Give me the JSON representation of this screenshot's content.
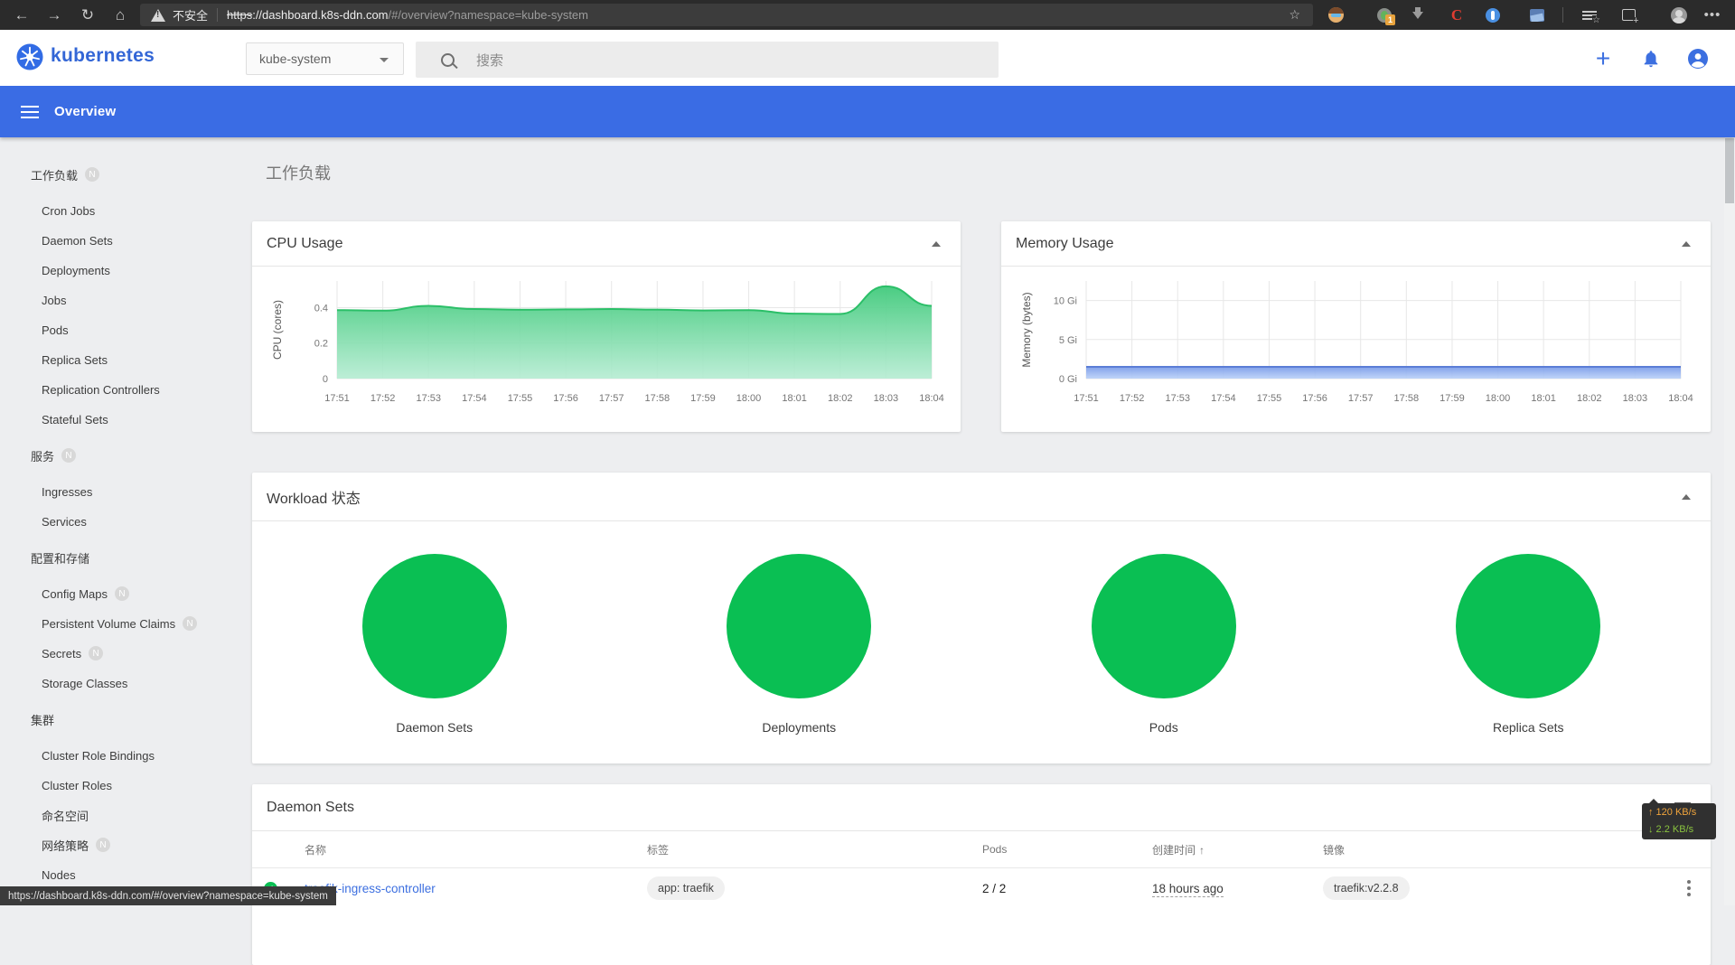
{
  "browser": {
    "security_label": "不安全",
    "url": {
      "scheme": "https",
      "domain": "://dashboard.k8s-ddn.com",
      "path": "/#/overview?namespace=kube-system"
    },
    "extension_badge": "1"
  },
  "app_header": {
    "brand": "kubernetes",
    "namespace": "kube-system",
    "search_placeholder": "搜索"
  },
  "toolbar": {
    "title": "Overview"
  },
  "sidebar": {
    "groups": [
      {
        "label": "工作负载",
        "badge": "N",
        "items": [
          {
            "label": "Cron Jobs"
          },
          {
            "label": "Daemon Sets"
          },
          {
            "label": "Deployments"
          },
          {
            "label": "Jobs"
          },
          {
            "label": "Pods"
          },
          {
            "label": "Replica Sets"
          },
          {
            "label": "Replication Controllers"
          },
          {
            "label": "Stateful Sets"
          }
        ]
      },
      {
        "label": "服务",
        "badge": "N",
        "items": [
          {
            "label": "Ingresses"
          },
          {
            "label": "Services"
          }
        ]
      },
      {
        "label": "配置和存储",
        "items": [
          {
            "label": "Config Maps",
            "badge": "N"
          },
          {
            "label": "Persistent Volume Claims",
            "badge": "N"
          },
          {
            "label": "Secrets",
            "badge": "N"
          },
          {
            "label": "Storage Classes"
          }
        ]
      },
      {
        "label": "集群",
        "items": [
          {
            "label": "Cluster Role Bindings"
          },
          {
            "label": "Cluster Roles"
          },
          {
            "label": "命名空间"
          },
          {
            "label": "网络策略",
            "badge": "N"
          },
          {
            "label": "Nodes"
          }
        ]
      }
    ]
  },
  "page": {
    "title": "工作负载"
  },
  "chart_data": [
    {
      "type": "area",
      "title": "CPU Usage",
      "ylabel": "CPU (cores)",
      "x": [
        "17:51",
        "17:52",
        "17:53",
        "17:54",
        "17:55",
        "17:56",
        "17:57",
        "17:58",
        "17:59",
        "18:00",
        "18:01",
        "18:02",
        "18:03",
        "18:04"
      ],
      "values": [
        0.386,
        0.383,
        0.41,
        0.392,
        0.388,
        0.39,
        0.392,
        0.389,
        0.384,
        0.386,
        0.366,
        0.364,
        0.52,
        0.41
      ],
      "yticks": [
        {
          "v": 0,
          "label": "0"
        },
        {
          "v": 0.2,
          "label": "0.2"
        },
        {
          "v": 0.4,
          "label": "0.4"
        }
      ],
      "ymax": 0.55,
      "line_color": "#2bbf68",
      "fill_top": "#41ca7c",
      "fill_bottom": "#b5ecd2"
    },
    {
      "type": "area",
      "title": "Memory Usage",
      "ylabel": "Memory (bytes)",
      "x": [
        "17:51",
        "17:52",
        "17:53",
        "17:54",
        "17:55",
        "17:56",
        "17:57",
        "17:58",
        "17:59",
        "18:00",
        "18:01",
        "18:02",
        "18:03",
        "18:04"
      ],
      "values": [
        1.5,
        1.5,
        1.5,
        1.5,
        1.5,
        1.5,
        1.5,
        1.5,
        1.5,
        1.5,
        1.5,
        1.5,
        1.5,
        1.5
      ],
      "yticks": [
        {
          "v": 0,
          "label": "0 Gi"
        },
        {
          "v": 5,
          "label": "5 Gi"
        },
        {
          "v": 10,
          "label": "10 Gi"
        }
      ],
      "ymax": 12.5,
      "line_color": "#5b7dd6",
      "fill_top": "#7b9ce8",
      "fill_bottom": "#b9d0f8"
    }
  ],
  "workload_status": {
    "title": "Workload 状态",
    "circle_color": "#0abf53",
    "items": [
      "Daemon Sets",
      "Deployments",
      "Pods",
      "Replica Sets"
    ]
  },
  "daemon_sets": {
    "title": "Daemon Sets",
    "columns": {
      "name": "名称",
      "labels": "标签",
      "pods": "Pods",
      "created": "创建时间",
      "images": "镜像"
    },
    "sort_icon": "↑",
    "rows": [
      {
        "name": "traefik-ingress-controller",
        "label_chip": "app: traefik",
        "pods": "2 / 2",
        "created": "18 hours ago",
        "image_chip": "traefik:v2.2.8"
      }
    ]
  },
  "status_bar": {
    "url": "https://dashboard.k8s-ddn.com/#/overview?namespace=kube-system"
  },
  "net_badge": {
    "up": "↑ 120 KB/s",
    "down": "↓ 2.2 KB/s",
    "up_color": "#f0a43c",
    "down_color": "#8ac43f"
  }
}
